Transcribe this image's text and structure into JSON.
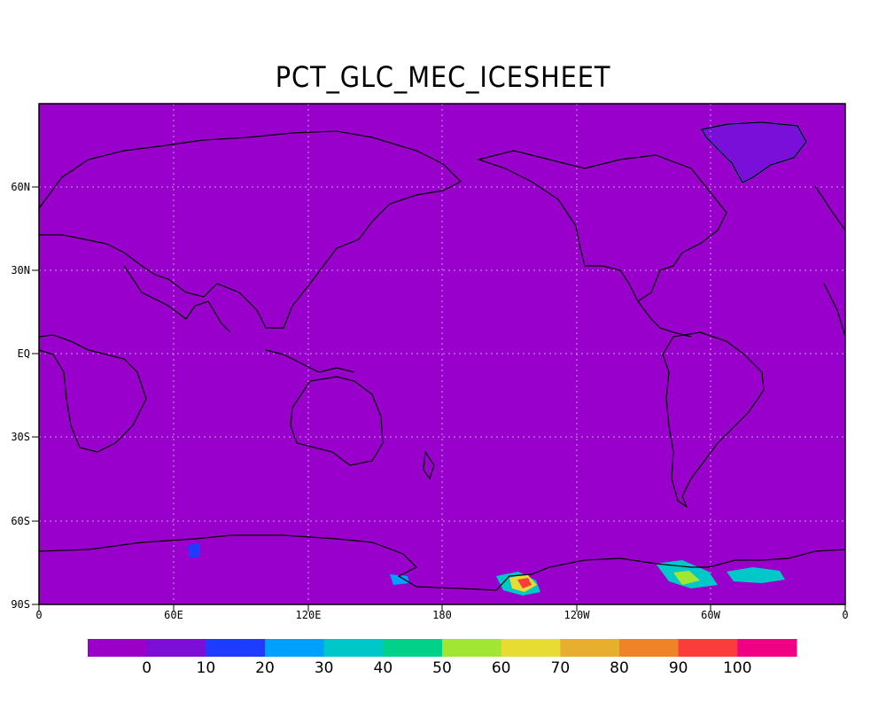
{
  "title": "PCT_GLC_MEC_ICESHEET",
  "background_color": "#9900cc",
  "grid": true,
  "lat_ticks": [
    "60N",
    "30N",
    "EQ",
    "30S",
    "60S",
    "90S"
  ],
  "lon_ticks": [
    "0",
    "60E",
    "120E",
    "180",
    "120W",
    "60W",
    "0"
  ],
  "colorbar": {
    "colors": [
      "#9a00c8",
      "#7b0fd8",
      "#1e3cff",
      "#00a0ff",
      "#00c8c8",
      "#00d28c",
      "#a0e632",
      "#e6dc32",
      "#e6af2d",
      "#f08228",
      "#fa3c3c",
      "#f00082"
    ],
    "labels": [
      "0",
      "10",
      "20",
      "30",
      "40",
      "50",
      "60",
      "70",
      "80",
      "90",
      "100"
    ]
  }
}
